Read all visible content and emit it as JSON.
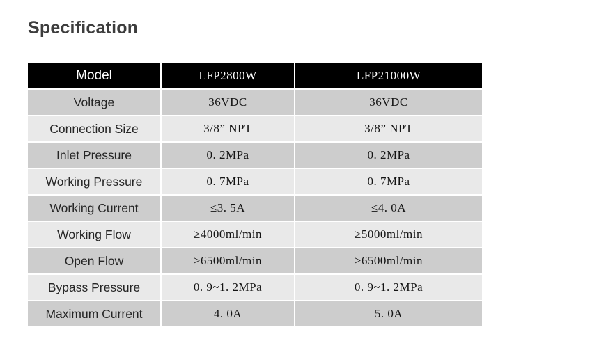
{
  "page": {
    "title": "Specification"
  },
  "table": {
    "columns": [
      "Model",
      "LFP2800W",
      "LFP21000W"
    ],
    "rows": [
      {
        "label": "Voltage",
        "values": [
          "36VDC",
          "36VDC"
        ]
      },
      {
        "label": "Connection Size",
        "values": [
          "3/8” NPT",
          "3/8” NPT"
        ]
      },
      {
        "label": "Inlet Pressure",
        "values": [
          "0. 2MPa",
          "0. 2MPa"
        ]
      },
      {
        "label": "Working Pressure",
        "values": [
          "0. 7MPa",
          "0. 7MPa"
        ]
      },
      {
        "label": "Working Current",
        "values": [
          "≤3. 5A",
          "≤4. 0A"
        ]
      },
      {
        "label": "Working Flow",
        "values": [
          "≥4000ml/min",
          "≥5000ml/min"
        ]
      },
      {
        "label": "Open Flow",
        "values": [
          "≥6500ml/min",
          "≥6500ml/min"
        ]
      },
      {
        "label": "Bypass Pressure",
        "values": [
          "0. 9~1. 2MPa",
          "0. 9~1. 2MPa"
        ]
      },
      {
        "label": "Maximum Current",
        "values": [
          "4. 0A",
          "5. 0A"
        ]
      }
    ],
    "colors": {
      "header_bg": "#000000",
      "header_text": "#ffffff",
      "row_gray": "#cdcdcd",
      "row_light": "#e9e9e9",
      "title_text": "#3d3d3d"
    }
  }
}
